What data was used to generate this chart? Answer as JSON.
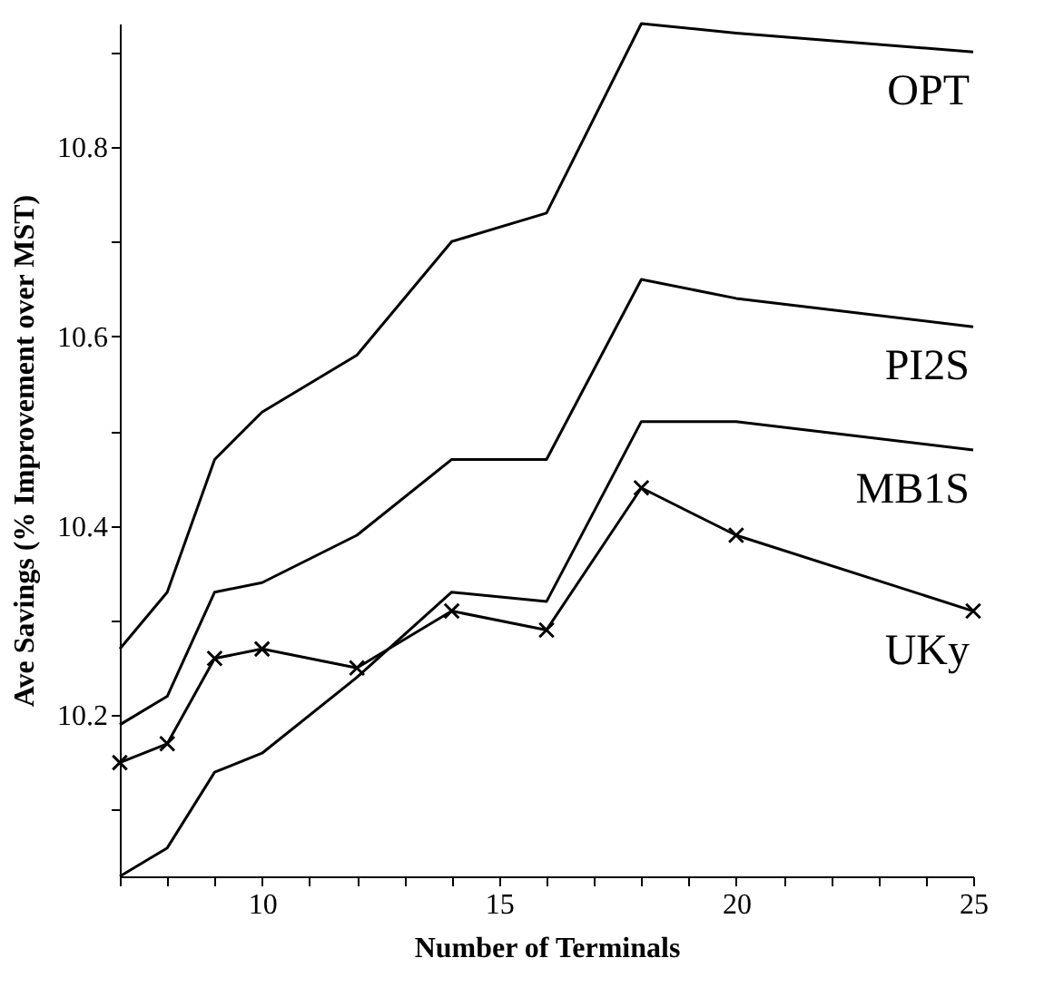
{
  "chart_data": {
    "type": "line",
    "xlabel": "Number of Terminals",
    "ylabel": "Ave Savings (% Improvement over MST)",
    "x": [
      7,
      8,
      9,
      10,
      12,
      14,
      16,
      18,
      20,
      25
    ],
    "series": [
      {
        "name": "OPT",
        "color": "#000000",
        "marker": "none",
        "values": [
          10.27,
          10.33,
          10.47,
          10.52,
          10.58,
          10.7,
          10.73,
          10.93,
          10.92,
          10.9
        ]
      },
      {
        "name": "PI2S",
        "color": "#000000",
        "marker": "none",
        "values": [
          10.19,
          10.22,
          10.33,
          10.34,
          10.39,
          10.47,
          10.47,
          10.66,
          10.64,
          10.61
        ]
      },
      {
        "name": "MB1S",
        "color": "#000000",
        "marker": "none",
        "values": [
          10.03,
          10.06,
          10.14,
          10.16,
          10.24,
          10.33,
          10.32,
          10.51,
          10.51,
          10.48
        ]
      },
      {
        "name": "UKy",
        "color": "#000000",
        "marker": "cross",
        "values": [
          10.15,
          10.17,
          10.26,
          10.27,
          10.25,
          10.31,
          10.29,
          10.44,
          10.39,
          10.31
        ]
      }
    ],
    "xlim": [
      7,
      25
    ],
    "xticks": [
      {
        "value": 7,
        "label": null
      },
      {
        "value": 8,
        "label": null
      },
      {
        "value": 9,
        "label": null
      },
      10,
      {
        "value": 11,
        "label": null
      },
      {
        "value": 12,
        "label": null
      },
      {
        "value": 13,
        "label": null
      },
      {
        "value": 14,
        "label": null
      },
      15,
      {
        "value": 16,
        "label": null
      },
      {
        "value": 17,
        "label": null
      },
      {
        "value": 18,
        "label": null
      },
      {
        "value": 19,
        "label": null
      },
      20,
      {
        "value": 21,
        "label": null
      },
      {
        "value": 22,
        "label": null
      },
      {
        "value": 23,
        "label": null
      },
      {
        "value": 24,
        "label": null
      },
      25
    ],
    "ylim": [
      10.03,
      10.93
    ],
    "yticks": [
      {
        "value": 10.1,
        "label": null
      },
      10.2,
      {
        "value": 10.3,
        "label": null
      },
      10.4,
      {
        "value": 10.5,
        "label": null
      },
      10.6,
      {
        "value": 10.7,
        "label": null
      },
      10.8,
      {
        "value": 10.9,
        "label": null
      }
    ],
    "grid": false,
    "line_style": "solid"
  }
}
